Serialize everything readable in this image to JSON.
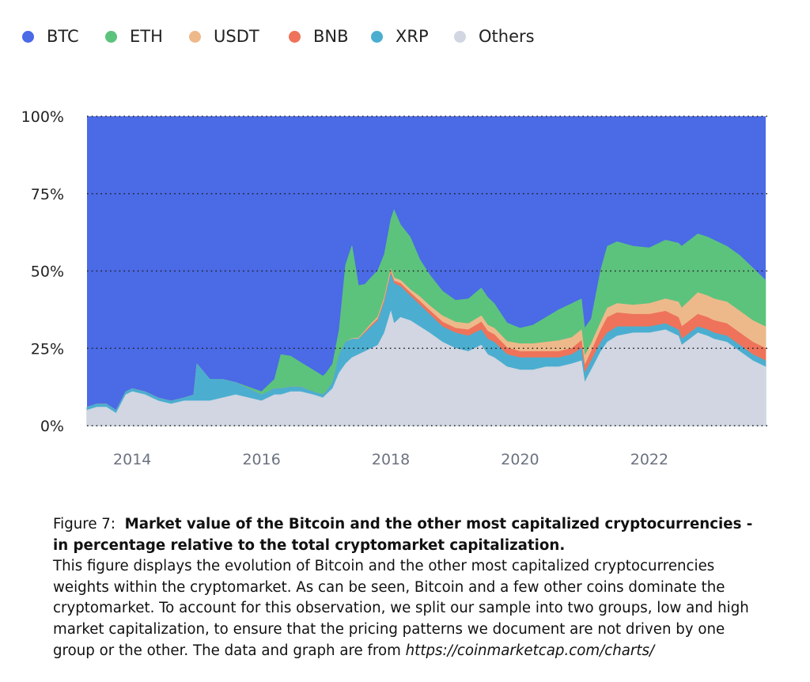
{
  "chart_data": {
    "type": "area",
    "stacked": true,
    "normalized": true,
    "title": "",
    "xlabel": "",
    "ylabel": "",
    "ylim": [
      0,
      100
    ],
    "y_unit": "%",
    "yticks": [
      "0%",
      "25%",
      "50%",
      "75%",
      "100%"
    ],
    "xticks": [
      "2014",
      "2016",
      "2018",
      "2020",
      "2022"
    ],
    "xrange": [
      2013.3,
      2023.8
    ],
    "grid": "horizontal-dotted",
    "legend_position": "top",
    "legend": [
      "BTC",
      "ETH",
      "USDT",
      "BNB",
      "XRP",
      "Others"
    ],
    "colors": {
      "BTC": "#4a6ae6",
      "ETH": "#5cc37d",
      "USDT": "#eeb98a",
      "BNB": "#ee735a",
      "XRP": "#4baed0",
      "Others": "#d1d6e2"
    },
    "x": [
      2013.3,
      2013.45,
      2013.6,
      2013.75,
      2013.9,
      2014.0,
      2014.2,
      2014.4,
      2014.6,
      2014.8,
      2014.95,
      2015.0,
      2015.2,
      2015.4,
      2015.6,
      2015.8,
      2016.0,
      2016.1,
      2016.2,
      2016.3,
      2016.45,
      2016.6,
      2016.8,
      2016.95,
      2017.0,
      2017.1,
      2017.2,
      2017.3,
      2017.4,
      2017.5,
      2017.6,
      2017.7,
      2017.8,
      2017.9,
      2018.0,
      2018.05,
      2018.15,
      2018.3,
      2018.45,
      2018.6,
      2018.8,
      2019.0,
      2019.2,
      2019.4,
      2019.5,
      2019.6,
      2019.8,
      2020.0,
      2020.2,
      2020.4,
      2020.6,
      2020.8,
      2020.95,
      2021.0,
      2021.1,
      2021.25,
      2021.35,
      2021.5,
      2021.75,
      2022.0,
      2022.25,
      2022.45,
      2022.5,
      2022.75,
      2022.9,
      2023.0,
      2023.2,
      2023.4,
      2023.6,
      2023.8
    ],
    "series": [
      {
        "name": "Others",
        "values": [
          5,
          6,
          6,
          4,
          10,
          11,
          10,
          8,
          7,
          8,
          8,
          8,
          8,
          9,
          10,
          9,
          8,
          9,
          10,
          10,
          11,
          11,
          10,
          9,
          10,
          12,
          17,
          20,
          22,
          23,
          24,
          25,
          26,
          30,
          37,
          33,
          35,
          34,
          32,
          30,
          27,
          25,
          24,
          26,
          23,
          22,
          19,
          18,
          18,
          19,
          19,
          20,
          21,
          14,
          18,
          24,
          27,
          29,
          30,
          30,
          31,
          29,
          26,
          30,
          29,
          28,
          27,
          24,
          21,
          19
        ]
      },
      {
        "name": "XRP",
        "values": [
          1,
          1,
          1,
          1,
          1,
          1,
          1,
          1,
          1,
          1,
          2,
          12,
          7,
          6,
          4,
          3,
          2,
          2,
          2,
          2,
          1.5,
          1.5,
          1,
          1,
          1,
          2,
          6,
          7,
          6,
          5,
          6,
          7,
          8,
          10,
          12,
          13,
          10,
          8,
          7,
          6,
          5,
          5,
          5,
          5,
          5,
          5,
          4,
          4,
          4,
          3,
          3,
          3,
          4,
          3,
          3,
          3,
          3,
          3,
          2,
          2,
          2,
          2,
          2,
          2,
          2,
          2,
          2,
          2,
          2,
          2
        ]
      },
      {
        "name": "BNB",
        "values": [
          0,
          0,
          0,
          0,
          0,
          0,
          0,
          0,
          0,
          0,
          0,
          0,
          0,
          0,
          0,
          0,
          0,
          0,
          0,
          0,
          0,
          0,
          0,
          0,
          0,
          0,
          0,
          0,
          0,
          0,
          0.3,
          0.5,
          0.5,
          0.6,
          0.7,
          0.8,
          1,
          1,
          1.2,
          1.3,
          1.5,
          1.5,
          2,
          2.5,
          2.5,
          2.5,
          2.2,
          2,
          2,
          2,
          2,
          2,
          2.5,
          2.5,
          3,
          4,
          5,
          4.5,
          4,
          4,
          4,
          4,
          4,
          4,
          4,
          4,
          4,
          4,
          4,
          4
        ]
      },
      {
        "name": "USDT",
        "values": [
          0,
          0,
          0,
          0,
          0,
          0,
          0,
          0,
          0,
          0,
          0,
          0,
          0,
          0,
          0,
          0,
          0,
          0,
          0,
          0,
          0,
          0,
          0,
          0,
          0,
          0,
          0,
          0,
          0.2,
          0.3,
          0.4,
          0.5,
          0.7,
          0.8,
          1,
          1,
          1,
          1,
          1.5,
          1.5,
          2,
          2,
          2,
          2,
          2,
          2,
          2,
          2.5,
          2.5,
          3,
          3.5,
          3.5,
          3.5,
          3,
          2.5,
          2.5,
          3,
          3,
          3,
          3.5,
          4,
          5,
          6,
          7,
          7,
          7,
          7,
          7,
          7,
          7
        ]
      },
      {
        "name": "ETH",
        "values": [
          0,
          0,
          0,
          0,
          0,
          0,
          0,
          0,
          0,
          0,
          0,
          0,
          0,
          0,
          0,
          0.5,
          1,
          2,
          3,
          11,
          10,
          8,
          7,
          6,
          6,
          6,
          8,
          25,
          30,
          17,
          15,
          15,
          15,
          14,
          16,
          22,
          18,
          17,
          12,
          10,
          8,
          7,
          8,
          9,
          9,
          8,
          6,
          5,
          6,
          8,
          10,
          11,
          10,
          9,
          8,
          17,
          20,
          20,
          19,
          18,
          19,
          19,
          20,
          19,
          19,
          19,
          18,
          18,
          17,
          15
        ]
      }
    ]
  },
  "caption": {
    "figure_label": "Figure 7:",
    "title": "Market value of the Bitcoin and the other most capitalized cryptocurrencies - in percentage relative to the total cryptomarket capitalization.",
    "body": "This figure displays the evolution of Bitcoin and the other most capitalized cryptocurrencies weights within the cryptomarket. As can be seen, Bitcoin and a few other coins dominate the cryptomarket. To account for this observation, we split our sample into two groups, low and high market capitalization, to ensure that the pricing patterns we document are not driven by one group or the other. The data and graph are from",
    "url": "https://coinmarketcap.com/charts/"
  }
}
